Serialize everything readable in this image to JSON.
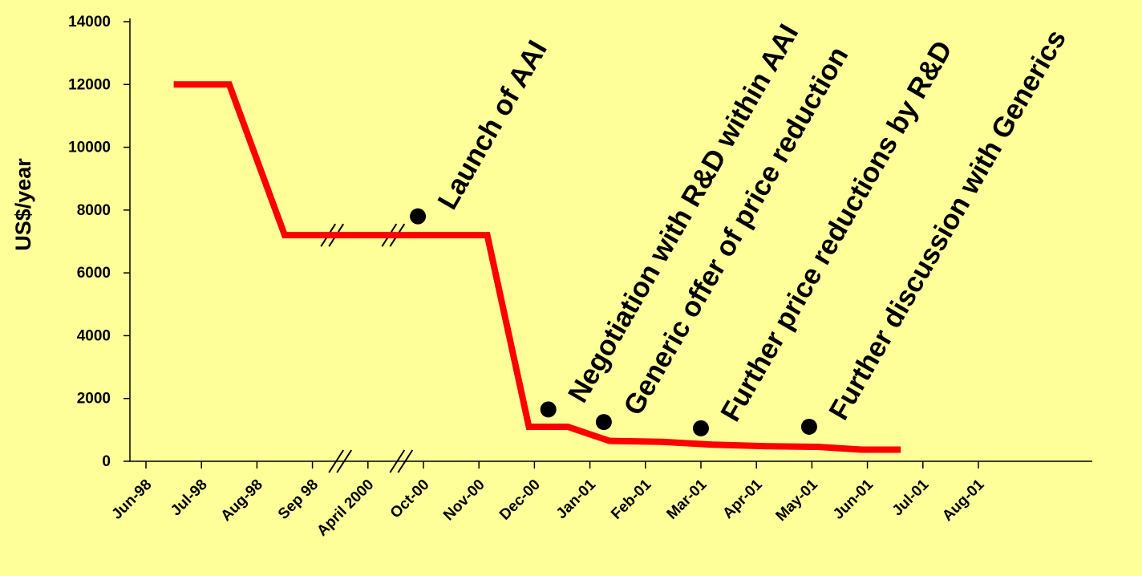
{
  "chart_data": {
    "type": "line",
    "title": "",
    "xlabel": "",
    "ylabel": "US$/year",
    "ylim": [
      0,
      14000
    ],
    "yticks": [
      0,
      2000,
      4000,
      6000,
      8000,
      10000,
      12000,
      14000
    ],
    "categories": [
      "Jun-98",
      "Jul-98",
      "Aug-98",
      "Sep 98",
      "April 2000",
      "Oct-00",
      "Nov-00",
      "Dec-00",
      "Jan-01",
      "Feb-01",
      "Mar-01",
      "Apr-01",
      "May-01",
      "Jun-01",
      "Jul-01",
      "Aug-01"
    ],
    "axis_breaks": [
      3.5,
      4.6
    ],
    "grid": false,
    "legend": "none",
    "series": [
      {
        "color": "#FF0000",
        "points": [
          {
            "x": 5.5,
            "y": 12000
          },
          {
            "x": 6.5,
            "y": 12000
          },
          {
            "x": 7.5,
            "y": 7200
          },
          {
            "x": 9.0,
            "y": 7200
          },
          {
            "x": 10.5,
            "y": 7200
          },
          {
            "x": 11.15,
            "y": 7200
          },
          {
            "x": 11.9,
            "y": 1100
          },
          {
            "x": 12.6,
            "y": 1100
          },
          {
            "x": 13.35,
            "y": 650
          },
          {
            "x": 14.3,
            "y": 620
          },
          {
            "x": 15.2,
            "y": 530
          },
          {
            "x": 16.2,
            "y": 480
          },
          {
            "x": 17.1,
            "y": 460
          },
          {
            "x": 17.9,
            "y": 370
          },
          {
            "x": 18.6,
            "y": 370
          }
        ]
      }
    ],
    "annotations": [
      {
        "text": "Launch of AAI",
        "x": 9.9,
        "y": 7800
      },
      {
        "text": "Negotiation with R&D within AAI",
        "x": 12.25,
        "y": 1650
      },
      {
        "text": "Generic offer of price reduction",
        "x": 13.25,
        "y": 1250
      },
      {
        "text": "Further price reductions by R&D",
        "x": 15.0,
        "y": 1050
      },
      {
        "text": "Further discussion with Generics",
        "x": 16.95,
        "y": 1100
      }
    ]
  }
}
